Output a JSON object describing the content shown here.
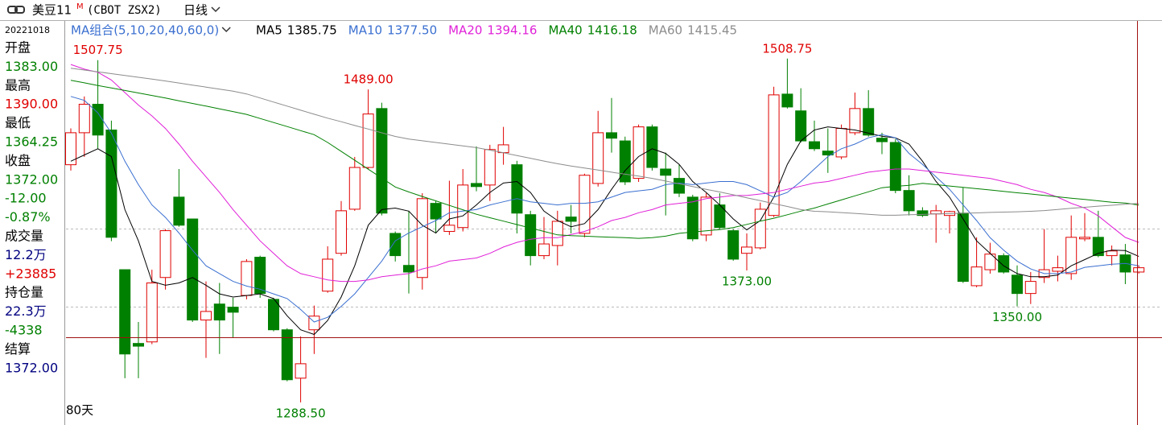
{
  "header": {
    "symbol": "美豆11",
    "superscript": "M",
    "code": "(CBOT ZSX2)",
    "period": "日线"
  },
  "info_panel": {
    "date": "20221018",
    "items": [
      {
        "text": "开盘",
        "color": "#000000"
      },
      {
        "text": "1383.00",
        "color": "#008000"
      },
      {
        "text": "最高",
        "color": "#000000"
      },
      {
        "text": "1390.00",
        "color": "#e00000"
      },
      {
        "text": "最低",
        "color": "#000000"
      },
      {
        "text": "1364.25",
        "color": "#008000"
      },
      {
        "text": "收盘",
        "color": "#000000"
      },
      {
        "text": "1372.00",
        "color": "#008000"
      },
      {
        "text": "-12.00",
        "color": "#008000"
      },
      {
        "text": "-0.87%",
        "color": "#008000"
      },
      {
        "text": "成交量",
        "color": "#000000"
      },
      {
        "text": "12.2万",
        "color": "#000080"
      },
      {
        "text": "+23885",
        "color": "#e00000"
      },
      {
        "text": "持仓量",
        "color": "#000000"
      },
      {
        "text": "22.3万",
        "color": "#000080"
      },
      {
        "text": "-4338",
        "color": "#008000"
      },
      {
        "text": "结算",
        "color": "#000000"
      },
      {
        "text": "1372.00",
        "color": "#000080"
      }
    ]
  },
  "chart_data": {
    "type": "candlestick",
    "legend_title": "MA组合(5,10,20,40,60,0)",
    "legend_title_color": "#3a6fd0",
    "footer": "80天",
    "ylim": [
      1274,
      1520.5
    ],
    "up_color": "#e00000",
    "down_color": "#008000",
    "open": [
      1440.75,
      1461.25,
      1479.5,
      1463,
      1373.5,
      1326.25,
      1327.25,
      1368.5,
      1420,
      1406,
      1341.25,
      1351.5,
      1349.5,
      1357,
      1381.5,
      1354.5,
      1335,
      1304,
      1335,
      1359.75,
      1384,
      1412.25,
      1439,
      1476.75,
      1396.75,
      1376.25,
      1368.5,
      1416,
      1398,
      1400.5,
      1428.75,
      1427.75,
      1448.5,
      1440.75,
      1408.75,
      1382.5,
      1389,
      1407.25,
      1396.75,
      1428.75,
      1461.25,
      1456,
      1432,
      1465,
      1438,
      1432,
      1420,
      1395.75,
      1415,
      1398.5,
      1384,
      1387.5,
      1408.25,
      1486,
      1475.25,
      1455.5,
      1449.5,
      1445.75,
      1461.25,
      1476.75,
      1457.75,
      1455,
      1424.25,
      1411.25,
      1409.25,
      1408.25,
      1409.75,
      1363.25,
      1373.5,
      1382.5,
      1370,
      1358.25,
      1368.5,
      1372.5,
      1371,
      1393.25,
      1394.25,
      1382.5,
      1383,
      1372
    ],
    "high": [
      1464,
      1484.5,
      1507.75,
      1469,
      1373.5,
      1340,
      1373.5,
      1399.5,
      1438,
      1406,
      1366,
      1365,
      1355.5,
      1380.25,
      1382.5,
      1355.5,
      1336,
      1330.75,
      1350.5,
      1388.5,
      1417.5,
      1445.75,
      1489,
      1480.5,
      1398,
      1411.25,
      1422.5,
      1417.5,
      1430.5,
      1438,
      1452.5,
      1453.5,
      1465,
      1443.25,
      1411.25,
      1407.25,
      1411.25,
      1415,
      1435,
      1475.25,
      1483.5,
      1458.75,
      1466.5,
      1466.5,
      1448.5,
      1440.75,
      1421.5,
      1422.5,
      1422.5,
      1399.5,
      1396.75,
      1416.5,
      1490.75,
      1508.75,
      1489.75,
      1469,
      1464,
      1466.5,
      1487,
      1488.5,
      1461.25,
      1457.25,
      1434,
      1413.5,
      1415,
      1411.25,
      1426.25,
      1394.25,
      1390.75,
      1384,
      1376.25,
      1372,
      1399.5,
      1382.5,
      1408.25,
      1409.75,
      1411.25,
      1389,
      1390,
      1376.25
    ],
    "low": [
      1437,
      1445.75,
      1451,
      1391.75,
      1304,
      1304,
      1325.75,
      1360.75,
      1401,
      1340,
      1317,
      1319.5,
      1329.75,
      1354.5,
      1355.5,
      1334,
      1302,
      1288.5,
      1319.5,
      1358.75,
      1382.5,
      1411.25,
      1438,
      1408.25,
      1378.75,
      1358.25,
      1360.75,
      1396.75,
      1395.75,
      1398,
      1423.75,
      1417.5,
      1440.75,
      1396.75,
      1376.25,
      1380.25,
      1376.25,
      1396.75,
      1394.25,
      1426.75,
      1448.5,
      1427.75,
      1429.75,
      1437,
      1408.25,
      1420,
      1391.75,
      1391.75,
      1399.5,
      1379.25,
      1373,
      1386.5,
      1407.25,
      1476.75,
      1455,
      1449.5,
      1435.5,
      1444.25,
      1459.75,
      1458.75,
      1447.5,
      1422.5,
      1408.25,
      1407.25,
      1390.75,
      1396.75,
      1365,
      1362.25,
      1371,
      1371,
      1350,
      1351.5,
      1365,
      1366,
      1367,
      1391.75,
      1381.5,
      1376.25,
      1364.25,
      1371
    ],
    "close": [
      1461.25,
      1479.5,
      1459.75,
      1394.25,
      1319.5,
      1324.5,
      1365,
      1398.5,
      1402,
      1341.25,
      1346.75,
      1341.25,
      1346.25,
      1378.75,
      1358.25,
      1335,
      1303,
      1313.25,
      1343.75,
      1380.25,
      1411.25,
      1439,
      1473.25,
      1409.75,
      1382.5,
      1372,
      1419,
      1406,
      1402,
      1427.75,
      1426.75,
      1450.5,
      1453.5,
      1409.75,
      1382.5,
      1390,
      1404.5,
      1404.5,
      1434,
      1461.25,
      1457.75,
      1429.75,
      1465,
      1439,
      1434,
      1422.5,
      1393.25,
      1420,
      1400.5,
      1380.25,
      1388,
      1412.25,
      1485.5,
      1477.75,
      1456,
      1451,
      1447,
      1464,
      1476.75,
      1459.75,
      1455.5,
      1424.25,
      1411.25,
      1408.25,
      1411.25,
      1410.75,
      1366,
      1375.25,
      1383.5,
      1372,
      1358.25,
      1366,
      1373.5,
      1374.75,
      1394.25,
      1394.25,
      1382.5,
      1385.5,
      1372,
      1374.75
    ],
    "series": [
      {
        "name": "MA5",
        "color": "#000000",
        "legend_label": "1385.75",
        "values": [
          1443,
          1447,
          1451,
          1446,
          1412,
          1392,
          1366,
          1363.5,
          1365,
          1368.5,
          1363.5,
          1358,
          1356,
          1357,
          1358,
          1355,
          1344,
          1335,
          1332,
          1341,
          1356,
          1376,
          1402,
          1412,
          1413,
          1411,
          1402,
          1397,
          1406,
          1408,
          1415,
          1423,
          1429,
          1430,
          1423,
          1411,
          1405,
          1401,
          1403,
          1412,
          1425,
          1437,
          1446,
          1451,
          1448,
          1441,
          1430,
          1423,
          1415,
          1406,
          1399,
          1405,
          1420,
          1441,
          1456,
          1463,
          1465,
          1464,
          1463,
          1461,
          1459,
          1458,
          1454,
          1443,
          1430,
          1420,
          1406,
          1392,
          1384,
          1376,
          1371,
          1369,
          1369,
          1370,
          1376,
          1380,
          1384,
          1386,
          1385.75,
          1382
        ]
      },
      {
        "name": "MA10",
        "color": "#3a6fd0",
        "legend_label": "1377.50",
        "values": [
          1484.5,
          1482,
          1474,
          1461,
          1443,
          1428,
          1415,
          1407,
          1397,
          1386,
          1376,
          1371,
          1366,
          1363,
          1361,
          1358,
          1355,
          1348,
          1340,
          1343,
          1350,
          1358,
          1368.5,
          1379,
          1392,
          1397,
          1401,
          1405,
          1410,
          1411,
          1412,
          1415,
          1417,
          1419,
          1417,
          1416,
          1415,
          1416,
          1416,
          1417,
          1420,
          1423,
          1424,
          1425,
          1428,
          1429,
          1428,
          1429,
          1430,
          1430,
          1428,
          1424,
          1420,
          1423,
          1430,
          1438,
          1446,
          1451,
          1454,
          1458,
          1460,
          1458,
          1448,
          1441,
          1433,
          1425,
          1415,
          1405,
          1394,
          1386,
          1379,
          1374,
          1371,
          1371,
          1372,
          1375,
          1376,
          1377,
          1377.5,
          1376
        ]
      },
      {
        "name": "MA20",
        "color": "#e020d8",
        "legend_label": "1394.16",
        "values": [
          1505,
          1502,
          1500,
          1495,
          1487,
          1479,
          1472,
          1464,
          1454,
          1443,
          1433,
          1423,
          1412,
          1402,
          1392,
          1384,
          1376,
          1371,
          1369,
          1367,
          1366,
          1366,
          1367,
          1369,
          1370,
          1371,
          1374,
          1376,
          1379,
          1380,
          1381,
          1384,
          1388,
          1391,
          1393,
          1394,
          1394,
          1396,
          1398,
          1401,
          1405,
          1407,
          1410,
          1412,
          1415,
          1416,
          1417,
          1419,
          1420,
          1421,
          1421,
          1422,
          1423,
          1425,
          1427,
          1429,
          1430,
          1432,
          1434,
          1436,
          1437,
          1438,
          1438,
          1437,
          1436,
          1435,
          1434,
          1433,
          1432,
          1430,
          1428,
          1425,
          1423,
          1420,
          1416,
          1413,
          1408,
          1401,
          1394.16,
          1391
        ]
      },
      {
        "name": "MA40",
        "color": "#008000",
        "legend_label": "1416.18",
        "values": [
          1494.8,
          1493.2,
          1491.5,
          1489.9,
          1488.3,
          1486.7,
          1485.1,
          1483.5,
          1481.7,
          1480,
          1478.3,
          1476.5,
          1474.8,
          1473,
          1470.4,
          1467.8,
          1465.2,
          1462.6,
          1460,
          1455,
          1449.3,
          1443.6,
          1437.9,
          1432.2,
          1426.5,
          1423.3,
          1420.4,
          1417.6,
          1414.7,
          1411.9,
          1409,
          1406.8,
          1404.6,
          1402.4,
          1400.2,
          1398,
          1395.8,
          1395.3,
          1395,
          1394.6,
          1394.3,
          1394,
          1393.6,
          1394,
          1395,
          1396.8,
          1397.6,
          1398.4,
          1399.2,
          1400.5,
          1402.5,
          1404.6,
          1406.5,
          1408.7,
          1411,
          1413,
          1415.6,
          1418.2,
          1420.8,
          1423.4,
          1426,
          1426.9,
          1427.5,
          1428.8,
          1428,
          1427.1,
          1426.3,
          1425.4,
          1424.6,
          1423.7,
          1422.8,
          1422,
          1421.1,
          1420.2,
          1419.3,
          1418.5,
          1417.6,
          1416.7,
          1416.18,
          1414.9
        ]
      },
      {
        "name": "MA60",
        "color": "#8c8c8c",
        "legend_label": "1415.45",
        "values": [
          1502.6,
          1501.4,
          1500.3,
          1499.1,
          1497.9,
          1496.8,
          1495.6,
          1494.4,
          1493.1,
          1491.8,
          1490.5,
          1489.2,
          1487.9,
          1486.1,
          1483.5,
          1480.9,
          1478.3,
          1475.7,
          1473.1,
          1470.6,
          1468.3,
          1465.9,
          1463.6,
          1461.2,
          1458.9,
          1457.2,
          1456.1,
          1455,
          1453.9,
          1452.8,
          1451.7,
          1450.1,
          1448.4,
          1446.6,
          1444.9,
          1443.1,
          1441.4,
          1439.9,
          1438.6,
          1437.3,
          1436,
          1434.7,
          1433.5,
          1432,
          1430.3,
          1428.5,
          1426.8,
          1425,
          1423.3,
          1421.5,
          1419.6,
          1417.7,
          1415.8,
          1414,
          1412,
          1410.9,
          1410.6,
          1410.1,
          1409.6,
          1409,
          1408.4,
          1408.4,
          1408.7,
          1408.9,
          1409.2,
          1409.4,
          1409.7,
          1409.9,
          1410.2,
          1410.4,
          1410.6,
          1410.9,
          1411.4,
          1412.1,
          1412.8,
          1413.5,
          1414.2,
          1414.8,
          1415.45,
          1415.9
        ]
      }
    ],
    "annotations": [
      {
        "value": 1507.75,
        "label": "1507.75"
      },
      {
        "value": 1489,
        "label": "1489.00"
      },
      {
        "value": 1508.75,
        "label": "1508.75"
      },
      {
        "value": 1373,
        "label": "1373.00"
      },
      {
        "value": 1288.5,
        "label": "1288.50"
      },
      {
        "value": 1350,
        "label": "1350.00"
      }
    ]
  }
}
